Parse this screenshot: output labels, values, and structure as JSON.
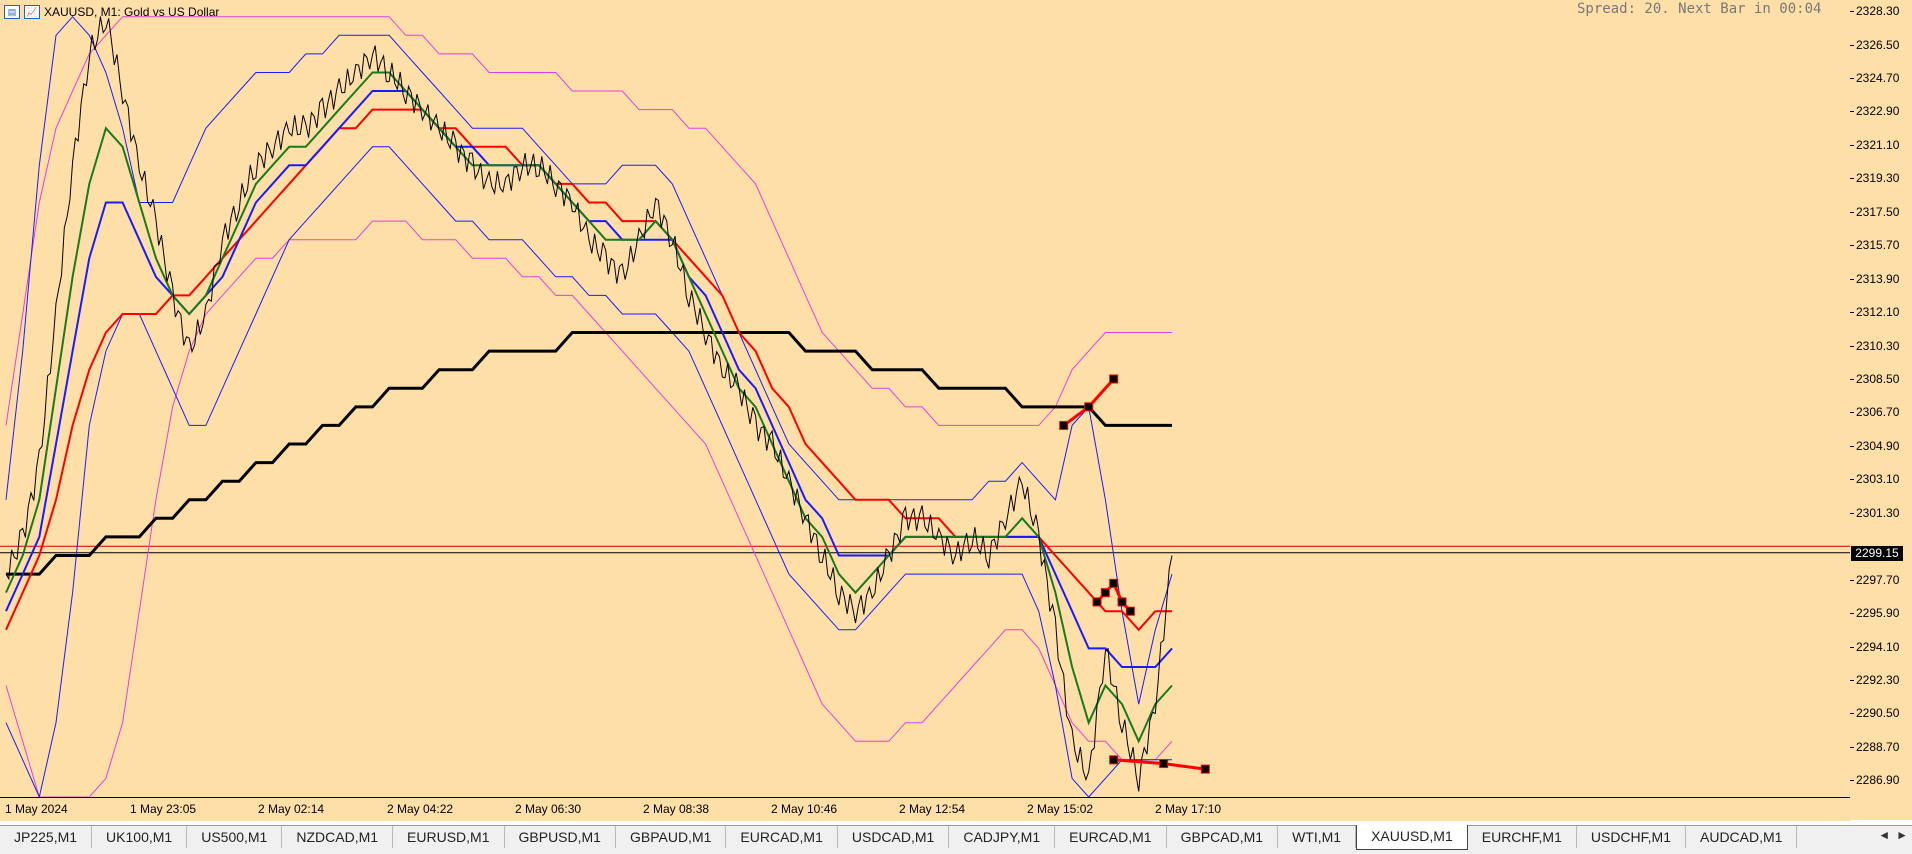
{
  "chart_header": {
    "symbol_line": "XAUUSD, M1:  Gold vs US Dollar",
    "spread_text": "Spread: 20. Next Bar in 00:04"
  },
  "price_axis": {
    "ticks": [
      "2328.30",
      "2326.50",
      "2324.70",
      "2322.90",
      "2321.10",
      "2319.30",
      "2317.50",
      "2315.70",
      "2313.90",
      "2312.10",
      "2310.30",
      "2308.50",
      "2306.70",
      "2304.90",
      "2303.10",
      "2301.30",
      "2297.70",
      "2295.90",
      "2294.10",
      "2292.30",
      "2290.50",
      "2288.70",
      "2286.90"
    ],
    "current_price": "2299.15"
  },
  "time_axis": {
    "ticks": [
      "1 May 2024",
      "1 May 23:05",
      "2 May 02:14",
      "2 May 04:22",
      "2 May 06:30",
      "2 May 08:38",
      "2 May 10:46",
      "2 May 12:54",
      "2 May 15:02",
      "2 May 17:10"
    ]
  },
  "chart_data": {
    "type": "line",
    "ylim": [
      2286.0,
      2328.9
    ],
    "series": [
      {
        "role": "price",
        "color": "#000000",
        "values": [
          2298,
          2300,
          2304,
          2312,
          2320,
          2326,
          2328,
          2324,
          2320,
          2317,
          2313,
          2310,
          2312,
          2316,
          2318,
          2320,
          2321,
          2322,
          2322,
          2323,
          2324,
          2325,
          2326,
          2325,
          2324,
          2323,
          2322,
          2321,
          2320,
          2319,
          2319,
          2320,
          2320,
          2319,
          2318,
          2316,
          2315,
          2314,
          2316,
          2318,
          2316,
          2313,
          2311,
          2309,
          2308,
          2306,
          2305,
          2303,
          2301,
          2299,
          2297,
          2296,
          2297,
          2299,
          2301,
          2301,
          2300,
          2299,
          2300,
          2299,
          2301,
          2303,
          2300,
          2295,
          2289,
          2287,
          2294,
          2290,
          2287,
          2291,
          2299
        ]
      },
      {
        "role": "ma-fast",
        "color": "#1a7a1a",
        "values": [
          2297,
          2299,
          2302,
          2308,
          2314,
          2319,
          2322,
          2321,
          2318,
          2315,
          2313,
          2312,
          2313,
          2315,
          2317,
          2319,
          2320,
          2321,
          2321,
          2322,
          2323,
          2324,
          2325,
          2325,
          2324,
          2323,
          2322,
          2321,
          2320,
          2320,
          2320,
          2320,
          2320,
          2319,
          2318,
          2317,
          2316,
          2316,
          2316,
          2317,
          2316,
          2314,
          2312,
          2310,
          2308,
          2307,
          2305,
          2303,
          2301,
          2300,
          2298,
          2297,
          2298,
          2299,
          2300,
          2300,
          2300,
          2300,
          2300,
          2300,
          2300,
          2301,
          2300,
          2297,
          2293,
          2290,
          2292,
          2291,
          2289,
          2291,
          2292
        ]
      },
      {
        "role": "ma-mid",
        "color": "#1a1aff",
        "values": [
          2296,
          2298,
          2300,
          2305,
          2310,
          2315,
          2318,
          2318,
          2316,
          2314,
          2313,
          2312,
          2313,
          2314,
          2316,
          2318,
          2319,
          2320,
          2320,
          2321,
          2322,
          2323,
          2324,
          2324,
          2324,
          2323,
          2322,
          2321,
          2321,
          2320,
          2320,
          2320,
          2320,
          2319,
          2318,
          2317,
          2317,
          2316,
          2316,
          2316,
          2316,
          2314,
          2313,
          2311,
          2309,
          2308,
          2306,
          2304,
          2302,
          2301,
          2299,
          2299,
          2299,
          2299,
          2300,
          2300,
          2300,
          2300,
          2300,
          2300,
          2300,
          2300,
          2300,
          2298,
          2296,
          2294,
          2294,
          2293,
          2293,
          2293,
          2294
        ]
      },
      {
        "role": "ma-slow",
        "color": "#ff0000",
        "values": [
          2295,
          2297,
          2299,
          2302,
          2306,
          2309,
          2311,
          2312,
          2312,
          2312,
          2313,
          2313,
          2314,
          2315,
          2316,
          2317,
          2318,
          2319,
          2320,
          2321,
          2322,
          2322,
          2323,
          2323,
          2323,
          2323,
          2322,
          2322,
          2321,
          2321,
          2321,
          2320,
          2320,
          2319,
          2319,
          2318,
          2318,
          2317,
          2317,
          2317,
          2316,
          2315,
          2314,
          2313,
          2311,
          2310,
          2308,
          2307,
          2305,
          2304,
          2303,
          2302,
          2302,
          2302,
          2301,
          2301,
          2301,
          2300,
          2300,
          2300,
          2300,
          2300,
          2300,
          2299,
          2298,
          2297,
          2296,
          2296,
          2295,
          2296,
          2296
        ]
      },
      {
        "role": "ma-long",
        "color": "#000000",
        "values": [
          2298,
          2298,
          2298,
          2299,
          2299,
          2299,
          2300,
          2300,
          2300,
          2301,
          2301,
          2302,
          2302,
          2303,
          2303,
          2304,
          2304,
          2305,
          2305,
          2306,
          2306,
          2307,
          2307,
          2308,
          2308,
          2308,
          2309,
          2309,
          2309,
          2310,
          2310,
          2310,
          2310,
          2310,
          2311,
          2311,
          2311,
          2311,
          2311,
          2311,
          2311,
          2311,
          2311,
          2311,
          2311,
          2311,
          2311,
          2311,
          2310,
          2310,
          2310,
          2310,
          2309,
          2309,
          2309,
          2309,
          2308,
          2308,
          2308,
          2308,
          2308,
          2307,
          2307,
          2307,
          2307,
          2307,
          2306,
          2306,
          2306,
          2306,
          2306
        ]
      },
      {
        "role": "band-inner-upper",
        "color": "#1a1aff",
        "values": [
          2302,
          2310,
          2320,
          2327,
          2328,
          2327,
          2325,
          2322,
          2318,
          2318,
          2318,
          2320,
          2322,
          2323,
          2324,
          2325,
          2325,
          2325,
          2326,
          2326,
          2327,
          2327,
          2327,
          2327,
          2326,
          2325,
          2324,
          2323,
          2322,
          2322,
          2322,
          2322,
          2321,
          2320,
          2319,
          2319,
          2319,
          2320,
          2320,
          2320,
          2319,
          2317,
          2315,
          2313,
          2311,
          2309,
          2307,
          2305,
          2304,
          2303,
          2302,
          2302,
          2302,
          2302,
          2302,
          2302,
          2302,
          2302,
          2302,
          2303,
          2303,
          2304,
          2303,
          2302,
          2306,
          2307,
          2302,
          2296,
          2291,
          2295,
          2298
        ]
      },
      {
        "role": "band-inner-lower",
        "color": "#1a1aff",
        "values": [
          2290,
          2288,
          2286,
          2290,
          2297,
          2306,
          2310,
          2312,
          2312,
          2310,
          2308,
          2306,
          2306,
          2308,
          2310,
          2312,
          2314,
          2316,
          2317,
          2318,
          2319,
          2320,
          2321,
          2321,
          2320,
          2319,
          2318,
          2317,
          2317,
          2316,
          2316,
          2316,
          2315,
          2314,
          2314,
          2313,
          2313,
          2312,
          2312,
          2312,
          2311,
          2310,
          2308,
          2306,
          2304,
          2302,
          2300,
          2298,
          2297,
          2296,
          2295,
          2295,
          2296,
          2297,
          2298,
          2298,
          2298,
          2298,
          2298,
          2298,
          2298,
          2298,
          2296,
          2292,
          2287,
          2286,
          2287,
          2288,
          2288,
          2288,
          2288
        ]
      },
      {
        "role": "band-outer-upper",
        "color": "#e040e0",
        "values": [
          2306,
          2312,
          2318,
          2322,
          2324,
          2326,
          2327,
          2328,
          2328,
          2328,
          2328,
          2328,
          2328,
          2328,
          2328,
          2328,
          2328,
          2328,
          2328,
          2328,
          2328,
          2328,
          2328,
          2328,
          2327,
          2327,
          2326,
          2326,
          2326,
          2325,
          2325,
          2325,
          2325,
          2325,
          2324,
          2324,
          2324,
          2324,
          2323,
          2323,
          2323,
          2322,
          2322,
          2321,
          2320,
          2319,
          2317,
          2315,
          2313,
          2311,
          2310,
          2309,
          2308,
          2308,
          2307,
          2307,
          2306,
          2306,
          2306,
          2306,
          2306,
          2306,
          2306,
          2307,
          2309,
          2310,
          2311,
          2311,
          2311,
          2311,
          2311
        ]
      },
      {
        "role": "band-outer-lower",
        "color": "#e040e0",
        "values": [
          2292,
          2289,
          2286,
          2286,
          2286,
          2286,
          2287,
          2290,
          2296,
          2302,
          2307,
          2310,
          2312,
          2313,
          2314,
          2315,
          2315,
          2316,
          2316,
          2316,
          2316,
          2316,
          2317,
          2317,
          2317,
          2316,
          2316,
          2316,
          2315,
          2315,
          2315,
          2314,
          2314,
          2313,
          2313,
          2312,
          2311,
          2310,
          2309,
          2308,
          2307,
          2306,
          2305,
          2303,
          2301,
          2299,
          2297,
          2295,
          2293,
          2291,
          2290,
          2289,
          2289,
          2289,
          2290,
          2290,
          2291,
          2292,
          2293,
          2294,
          2295,
          2295,
          2294,
          2292,
          2290,
          2289,
          2289,
          2288,
          2288,
          2288,
          2289
        ]
      }
    ],
    "horizontal_lines": [
      {
        "value": 2299.15,
        "color": "#000000"
      },
      {
        "value": 2299.5,
        "color": "#cc0000"
      }
    ],
    "trend_segments": [
      {
        "color": "#ff0000",
        "points": [
          [
            63.5,
            2306.0
          ],
          [
            65.0,
            2307.0
          ],
          [
            66.5,
            2308.5
          ]
        ]
      },
      {
        "color": "#ff0000",
        "points": [
          [
            65.5,
            2296.5
          ],
          [
            66.0,
            2297.0
          ],
          [
            66.5,
            2297.5
          ],
          [
            67.0,
            2296.5
          ],
          [
            67.5,
            2296.0
          ]
        ]
      },
      {
        "color": "#ff0000",
        "points": [
          [
            66.5,
            2288.0
          ],
          [
            69.5,
            2287.8
          ],
          [
            72.0,
            2287.5
          ]
        ]
      }
    ]
  },
  "symbol_tabs": {
    "items": [
      "JP225,M1",
      "UK100,M1",
      "US500,M1",
      "NZDCAD,M1",
      "EURUSD,M1",
      "GBPUSD,M1",
      "GBPAUD,M1",
      "EURCAD,M1",
      "USDCAD,M1",
      "CADJPY,M1",
      "EURCAD,M1",
      "GBPCAD,M1",
      "WTI,M1",
      "XAUUSD,M1",
      "EURCHF,M1",
      "USDCHF,M1",
      "AUDCAD,M1"
    ],
    "active_index": 13,
    "scroll_left": "◄",
    "scroll_right": "►"
  }
}
